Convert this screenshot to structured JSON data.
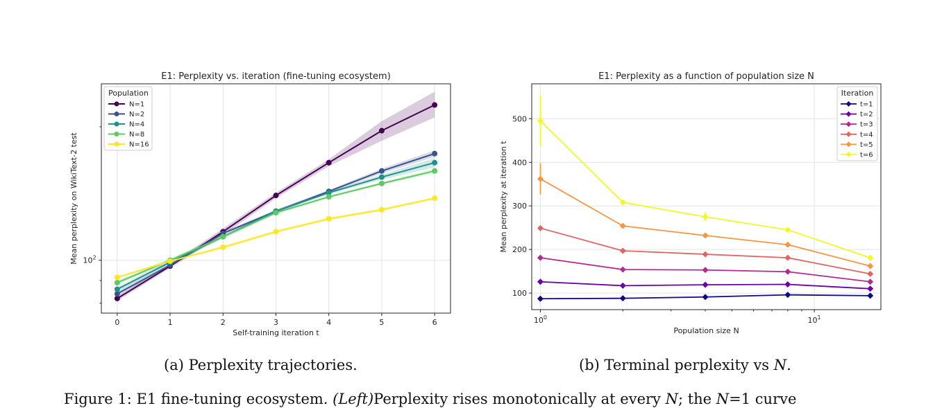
{
  "chart_data": [
    {
      "type": "line",
      "title": "E1: Perplexity vs. iteration (fine-tuning ecosystem)",
      "xlabel": "Self-training iteration t",
      "ylabel": "Mean perplexity on WikiText-2 test",
      "yscale": "log",
      "x": [
        0,
        1,
        2,
        3,
        4,
        5,
        6
      ],
      "xticks": [
        "0",
        "1",
        "2",
        "3",
        "4",
        "5",
        "6"
      ],
      "xlim": [
        -0.3,
        6.3
      ],
      "ylim": [
        76,
        250
      ],
      "yticks": [
        {
          "value": 100,
          "base": "10",
          "exp": "2"
        }
      ],
      "grid": true,
      "legend": {
        "title": "Population",
        "placement": "upper-left"
      },
      "series": [
        {
          "name": "N=1",
          "color": "#440154",
          "values": [
            82,
            97,
            116,
            140,
            166,
            196,
            224
          ],
          "band": [
            [
              81,
              83
            ],
            [
              96,
              98
            ],
            [
              114,
              118
            ],
            [
              138,
              142
            ],
            [
              163,
              169
            ],
            [
              186,
              206
            ],
            [
              210,
              240
            ]
          ]
        },
        {
          "name": "N=2",
          "color": "#3b528b",
          "values": [
            84,
            97.5,
            115,
            129,
            143,
            159,
            174
          ],
          "band": [
            [
              83,
              85
            ],
            [
              96.5,
              98.5
            ],
            [
              114,
              116
            ],
            [
              128,
              130
            ],
            [
              142,
              144
            ],
            [
              157,
              161
            ],
            [
              171,
              177
            ]
          ]
        },
        {
          "name": "N=4",
          "color": "#21918c",
          "values": [
            86,
            99,
            113,
            129,
            142,
            154,
            166
          ],
          "band": [
            [
              85,
              87
            ],
            [
              98,
              100
            ],
            [
              112,
              114
            ],
            [
              128,
              130
            ],
            [
              141,
              143
            ],
            [
              152,
              156
            ],
            [
              162,
              170
            ]
          ]
        },
        {
          "name": "N=8",
          "color": "#5ec962",
          "values": [
            89,
            100,
            113,
            128,
            139,
            149,
            159
          ],
          "band": [
            [
              88,
              90
            ],
            [
              99,
              101
            ],
            [
              112,
              114
            ],
            [
              127,
              129
            ],
            [
              138,
              140
            ],
            [
              148,
              150
            ],
            [
              157,
              161
            ]
          ]
        },
        {
          "name": "N=16",
          "color": "#fde725",
          "values": [
            91.5,
            99.5,
            107,
            116,
            124,
            130,
            138
          ],
          "band": [
            [
              91,
              92
            ],
            [
              99,
              100
            ],
            [
              106,
              108
            ],
            [
              115,
              117
            ],
            [
              123,
              125
            ],
            [
              129,
              131
            ],
            [
              137,
              139
            ]
          ]
        }
      ]
    },
    {
      "type": "line",
      "title": "E1: Perplexity as a function of population size N",
      "xlabel": "Population size N",
      "ylabel": "Mean perplexity at iteration t",
      "xscale": "log",
      "x": [
        1,
        2,
        4,
        8,
        16
      ],
      "xlim": [
        0.93,
        17.5
      ],
      "xticks": [
        {
          "value": 1,
          "base": "10",
          "exp": "0"
        },
        {
          "value": 10,
          "base": "10",
          "exp": "1"
        }
      ],
      "ylim": [
        62,
        580
      ],
      "yticks": [
        100,
        200,
        300,
        400,
        500
      ],
      "grid": true,
      "legend": {
        "title": "Iteration",
        "placement": "upper-right"
      },
      "series": [
        {
          "name": "t=1",
          "color": "#0d0887",
          "values": [
            87,
            88,
            91,
            96,
            94
          ],
          "err": [
            0,
            0,
            0,
            0,
            0
          ]
        },
        {
          "name": "t=2",
          "color": "#6a00a8",
          "values": [
            126,
            117,
            119,
            120,
            110
          ],
          "err": [
            0,
            0,
            0,
            0,
            0
          ]
        },
        {
          "name": "t=3",
          "color": "#b12a90",
          "values": [
            181,
            154,
            153,
            149,
            126
          ],
          "err": [
            0,
            0,
            0,
            0,
            0
          ]
        },
        {
          "name": "t=4",
          "color": "#e16462",
          "values": [
            249,
            197,
            189,
            181,
            144
          ],
          "err": [
            6,
            0,
            0,
            0,
            0
          ]
        },
        {
          "name": "t=5",
          "color": "#f89540",
          "values": [
            362,
            254,
            232,
            211,
            162
          ],
          "err": [
            36,
            0,
            0,
            0,
            0
          ]
        },
        {
          "name": "t=6",
          "color": "#f0f921",
          "values": [
            495,
            308,
            275,
            245,
            181
          ],
          "err": [
            58,
            0,
            10,
            0,
            0
          ]
        }
      ]
    }
  ],
  "captions": {
    "sub_a": "(a) Perplexity trajectories.",
    "sub_b_prefix": "(b) Terminal perplexity vs ",
    "sub_b_var": "N",
    "sub_b_suffix": ".",
    "figure_prefix": "Figure 1: E1 fine-tuning ecosystem. ",
    "figure_left": "(Left)",
    "figure_mid": "Perplexity rises monotonically at every ",
    "figure_var1": "N",
    "figure_mid2": "; the ",
    "figure_var2": "N",
    "figure_eq": "=1 curve"
  }
}
